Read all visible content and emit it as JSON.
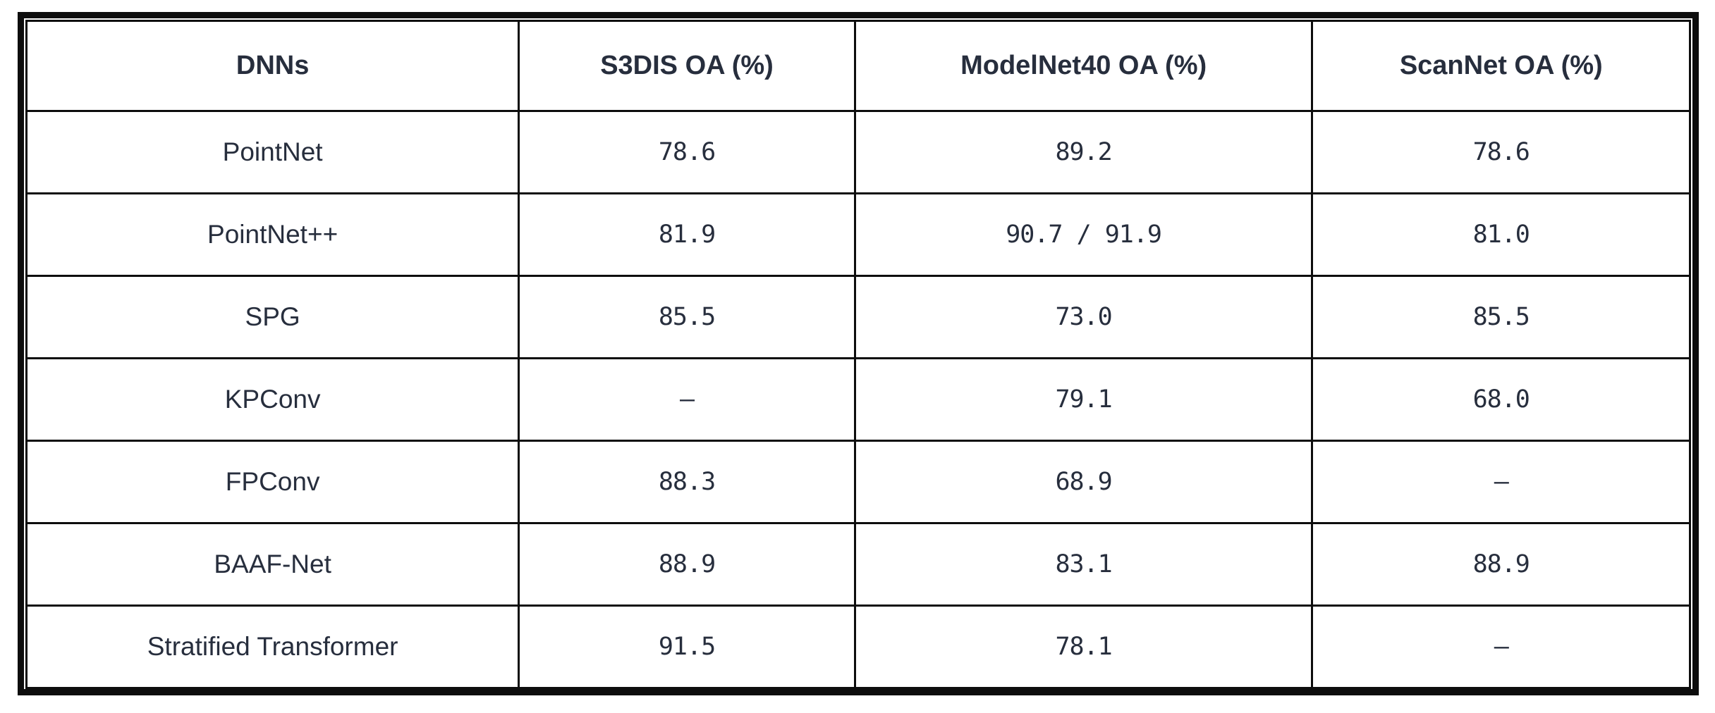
{
  "colors": {
    "background": "#ffffff",
    "border": "#0d0d0d",
    "text": "#272e3d",
    "cell_background": "#ffffff"
  },
  "chart_data": {
    "type": "table",
    "title": "",
    "columns": [
      "DNNs",
      "S3DIS OA (%)",
      "ModelNet40 OA (%)",
      "ScanNet OA (%)"
    ],
    "rows": [
      [
        "PointNet",
        "78.6",
        "89.2",
        "78.6"
      ],
      [
        "PointNet++",
        "81.9",
        "90.7 / 91.9",
        "81.0"
      ],
      [
        "SPG",
        "85.5",
        "73.0",
        "85.5"
      ],
      [
        "KPConv",
        "–",
        "79.1",
        "68.0"
      ],
      [
        "FPConv",
        "88.3",
        "68.9",
        "–"
      ],
      [
        "BAAF-Net",
        "88.9",
        "83.1",
        "88.9"
      ],
      [
        "Stratified Transformer",
        "91.5",
        "78.1",
        "–"
      ]
    ],
    "missing_value_marker": "–",
    "layout": {
      "column_width_percent": [
        29.6,
        20.2,
        27.5,
        22.7
      ],
      "header_bold": true,
      "grid": "full",
      "outer_border": "thick-black-with-inner-gap"
    }
  }
}
